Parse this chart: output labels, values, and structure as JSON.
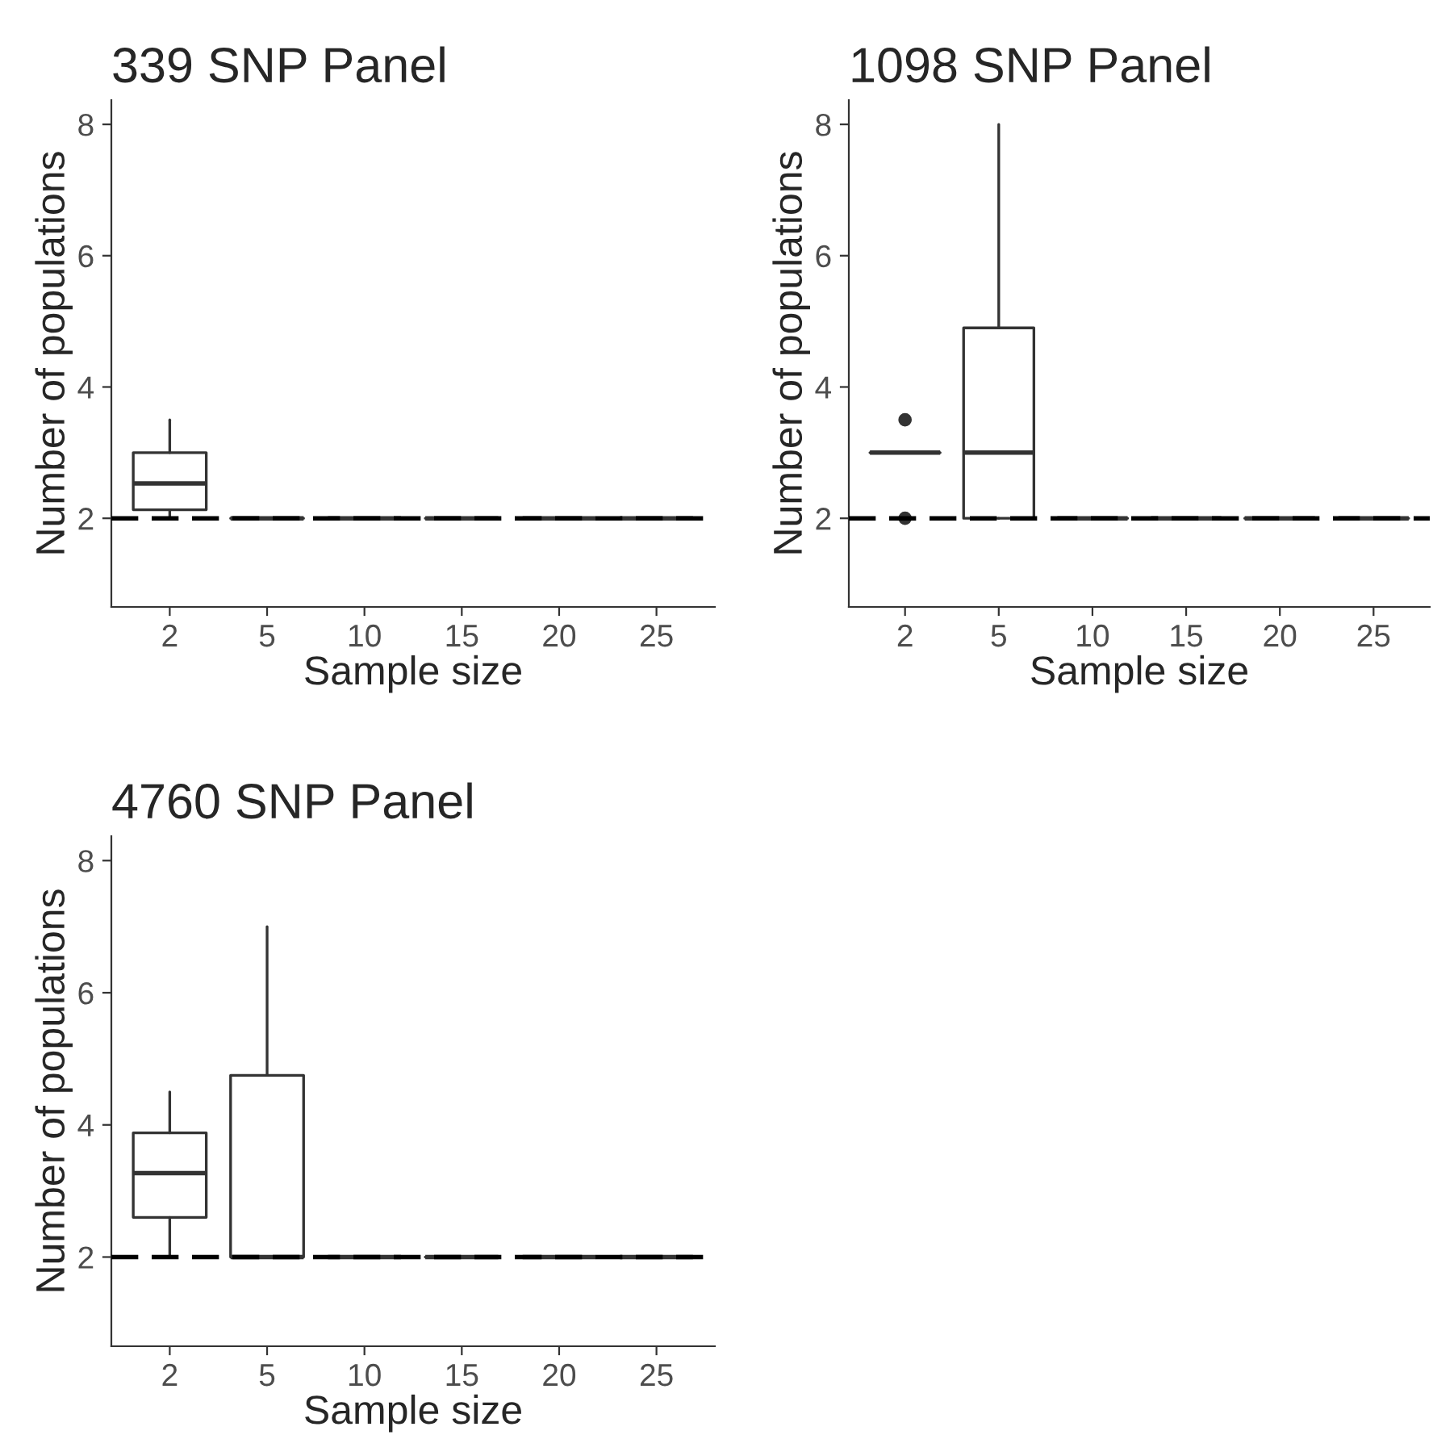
{
  "chart_data": [
    {
      "type": "box",
      "title": "339 SNP Panel",
      "xlabel": "Sample size",
      "ylabel": "Number of populations",
      "categories": [
        "2",
        "5",
        "10",
        "15",
        "20",
        "25"
      ],
      "boxes": [
        {
          "low": 2,
          "q1": 2.13,
          "median": 2.53,
          "q3": 3.0,
          "high": 3.5
        },
        {
          "low": 2,
          "q1": 2,
          "median": 2,
          "q3": 2,
          "high": 2
        },
        {
          "low": 2,
          "q1": 2,
          "median": 2,
          "q3": 2,
          "high": 2
        },
        {
          "low": 2,
          "q1": 2,
          "median": 2,
          "q3": 2,
          "high": 2
        },
        {
          "low": 2,
          "q1": 2,
          "median": 2,
          "q3": 2,
          "high": 2
        },
        {
          "low": 2,
          "q1": 2,
          "median": 2,
          "q3": 2,
          "high": 2
        }
      ],
      "ylim": [
        0.65,
        8.37
      ],
      "yticks": [
        2,
        4,
        6,
        8
      ],
      "grid": false,
      "ref_lines": [
        {
          "axis": "y",
          "value": 2,
          "color": "#000000",
          "line_style": "dashed"
        }
      ]
    },
    {
      "type": "box",
      "title": "1098 SNP Panel",
      "xlabel": "Sample size",
      "ylabel": "Number of populations",
      "categories": [
        "2",
        "5",
        "10",
        "15",
        "20",
        "25"
      ],
      "boxes": [
        {
          "low": 3,
          "q1": 3,
          "median": 3,
          "q3": 3,
          "high": 3,
          "outliers": [
            3.5,
            2
          ]
        },
        {
          "low": 2,
          "q1": 2,
          "median": 3,
          "q3": 4.9,
          "high": 8
        },
        {
          "low": 2,
          "q1": 2,
          "median": 2,
          "q3": 2,
          "high": 2
        },
        {
          "low": 2,
          "q1": 2,
          "median": 2,
          "q3": 2,
          "high": 2
        },
        {
          "low": 2,
          "q1": 2,
          "median": 2,
          "q3": 2,
          "high": 2
        },
        {
          "low": 2,
          "q1": 2,
          "median": 2,
          "q3": 2,
          "high": 2
        }
      ],
      "ylim": [
        0.65,
        8.37
      ],
      "yticks": [
        2,
        4,
        6,
        8
      ],
      "grid": false,
      "ref_lines": [
        {
          "axis": "y",
          "value": 2,
          "color": "#000000",
          "line_style": "dashed"
        }
      ]
    },
    {
      "type": "box",
      "title": "4760 SNP Panel",
      "xlabel": "Sample size",
      "ylabel": "Number of populations",
      "categories": [
        "2",
        "5",
        "10",
        "15",
        "20",
        "25"
      ],
      "boxes": [
        {
          "low": 2,
          "q1": 2.6,
          "median": 3.27,
          "q3": 3.88,
          "high": 4.5
        },
        {
          "low": 2,
          "q1": 2,
          "median": 2,
          "q3": 4.75,
          "high": 7
        },
        {
          "low": 2,
          "q1": 2,
          "median": 2,
          "q3": 2,
          "high": 2
        },
        {
          "low": 2,
          "q1": 2,
          "median": 2,
          "q3": 2,
          "high": 2
        },
        {
          "low": 2,
          "q1": 2,
          "median": 2,
          "q3": 2,
          "high": 2
        },
        {
          "low": 2,
          "q1": 2,
          "median": 2,
          "q3": 2,
          "high": 2
        }
      ],
      "ylim": [
        0.65,
        8.37
      ],
      "yticks": [
        2,
        4,
        6,
        8
      ],
      "grid": false,
      "ref_lines": [
        {
          "axis": "y",
          "value": 2,
          "color": "#000000",
          "line_style": "dashed"
        }
      ]
    }
  ]
}
